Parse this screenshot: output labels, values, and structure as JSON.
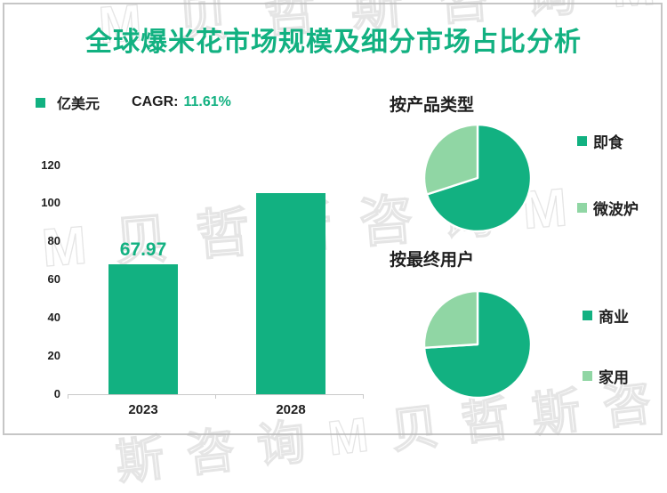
{
  "title": "全球爆米花市场规模及细分市场占比分析",
  "colors": {
    "primary_green": "#12b181",
    "light_green": "#90d6a4",
    "text_dark": "#1f1f1f",
    "axis_gray": "#c9c9c9",
    "title_green": "#12b181"
  },
  "bar_legend": {
    "unit": "亿美元",
    "cagr_label": "CAGR:",
    "cagr_value": "11.61%"
  },
  "pie_sections": [
    {
      "title": "按产品类型"
    },
    {
      "title": "按最终用户"
    }
  ],
  "chart_data": [
    {
      "type": "bar",
      "title": "全球爆米花市场规模",
      "ylabel": "亿美元",
      "categories": [
        "2023",
        "2028"
      ],
      "values": [
        67.97,
        105.4
      ],
      "data_labels": [
        "67.97",
        ""
      ],
      "ylim": [
        0,
        120
      ],
      "yticks": [
        0,
        20,
        40,
        60,
        80,
        100,
        120
      ],
      "grid": false,
      "cagr": "11.61%",
      "bar_color": "#12b181"
    },
    {
      "type": "pie",
      "title": "按产品类型",
      "labels": [
        "即食",
        "微波炉"
      ],
      "values": [
        70,
        30
      ],
      "colors": [
        "#12b181",
        "#90d6a4"
      ],
      "legend_position": "right",
      "start": "12-oclock-clockwise"
    },
    {
      "type": "pie",
      "title": "按最终用户",
      "labels": [
        "商业",
        "家用"
      ],
      "values": [
        74,
        26
      ],
      "colors": [
        "#12b181",
        "#90d6a4"
      ],
      "legend_position": "right",
      "start": "12-oclock-clockwise"
    }
  ],
  "watermarks": {
    "top": "M贝哲斯咨询M",
    "middle": "M贝哲斯咨询M",
    "bottom": "斯咨询M贝哲斯咨"
  }
}
